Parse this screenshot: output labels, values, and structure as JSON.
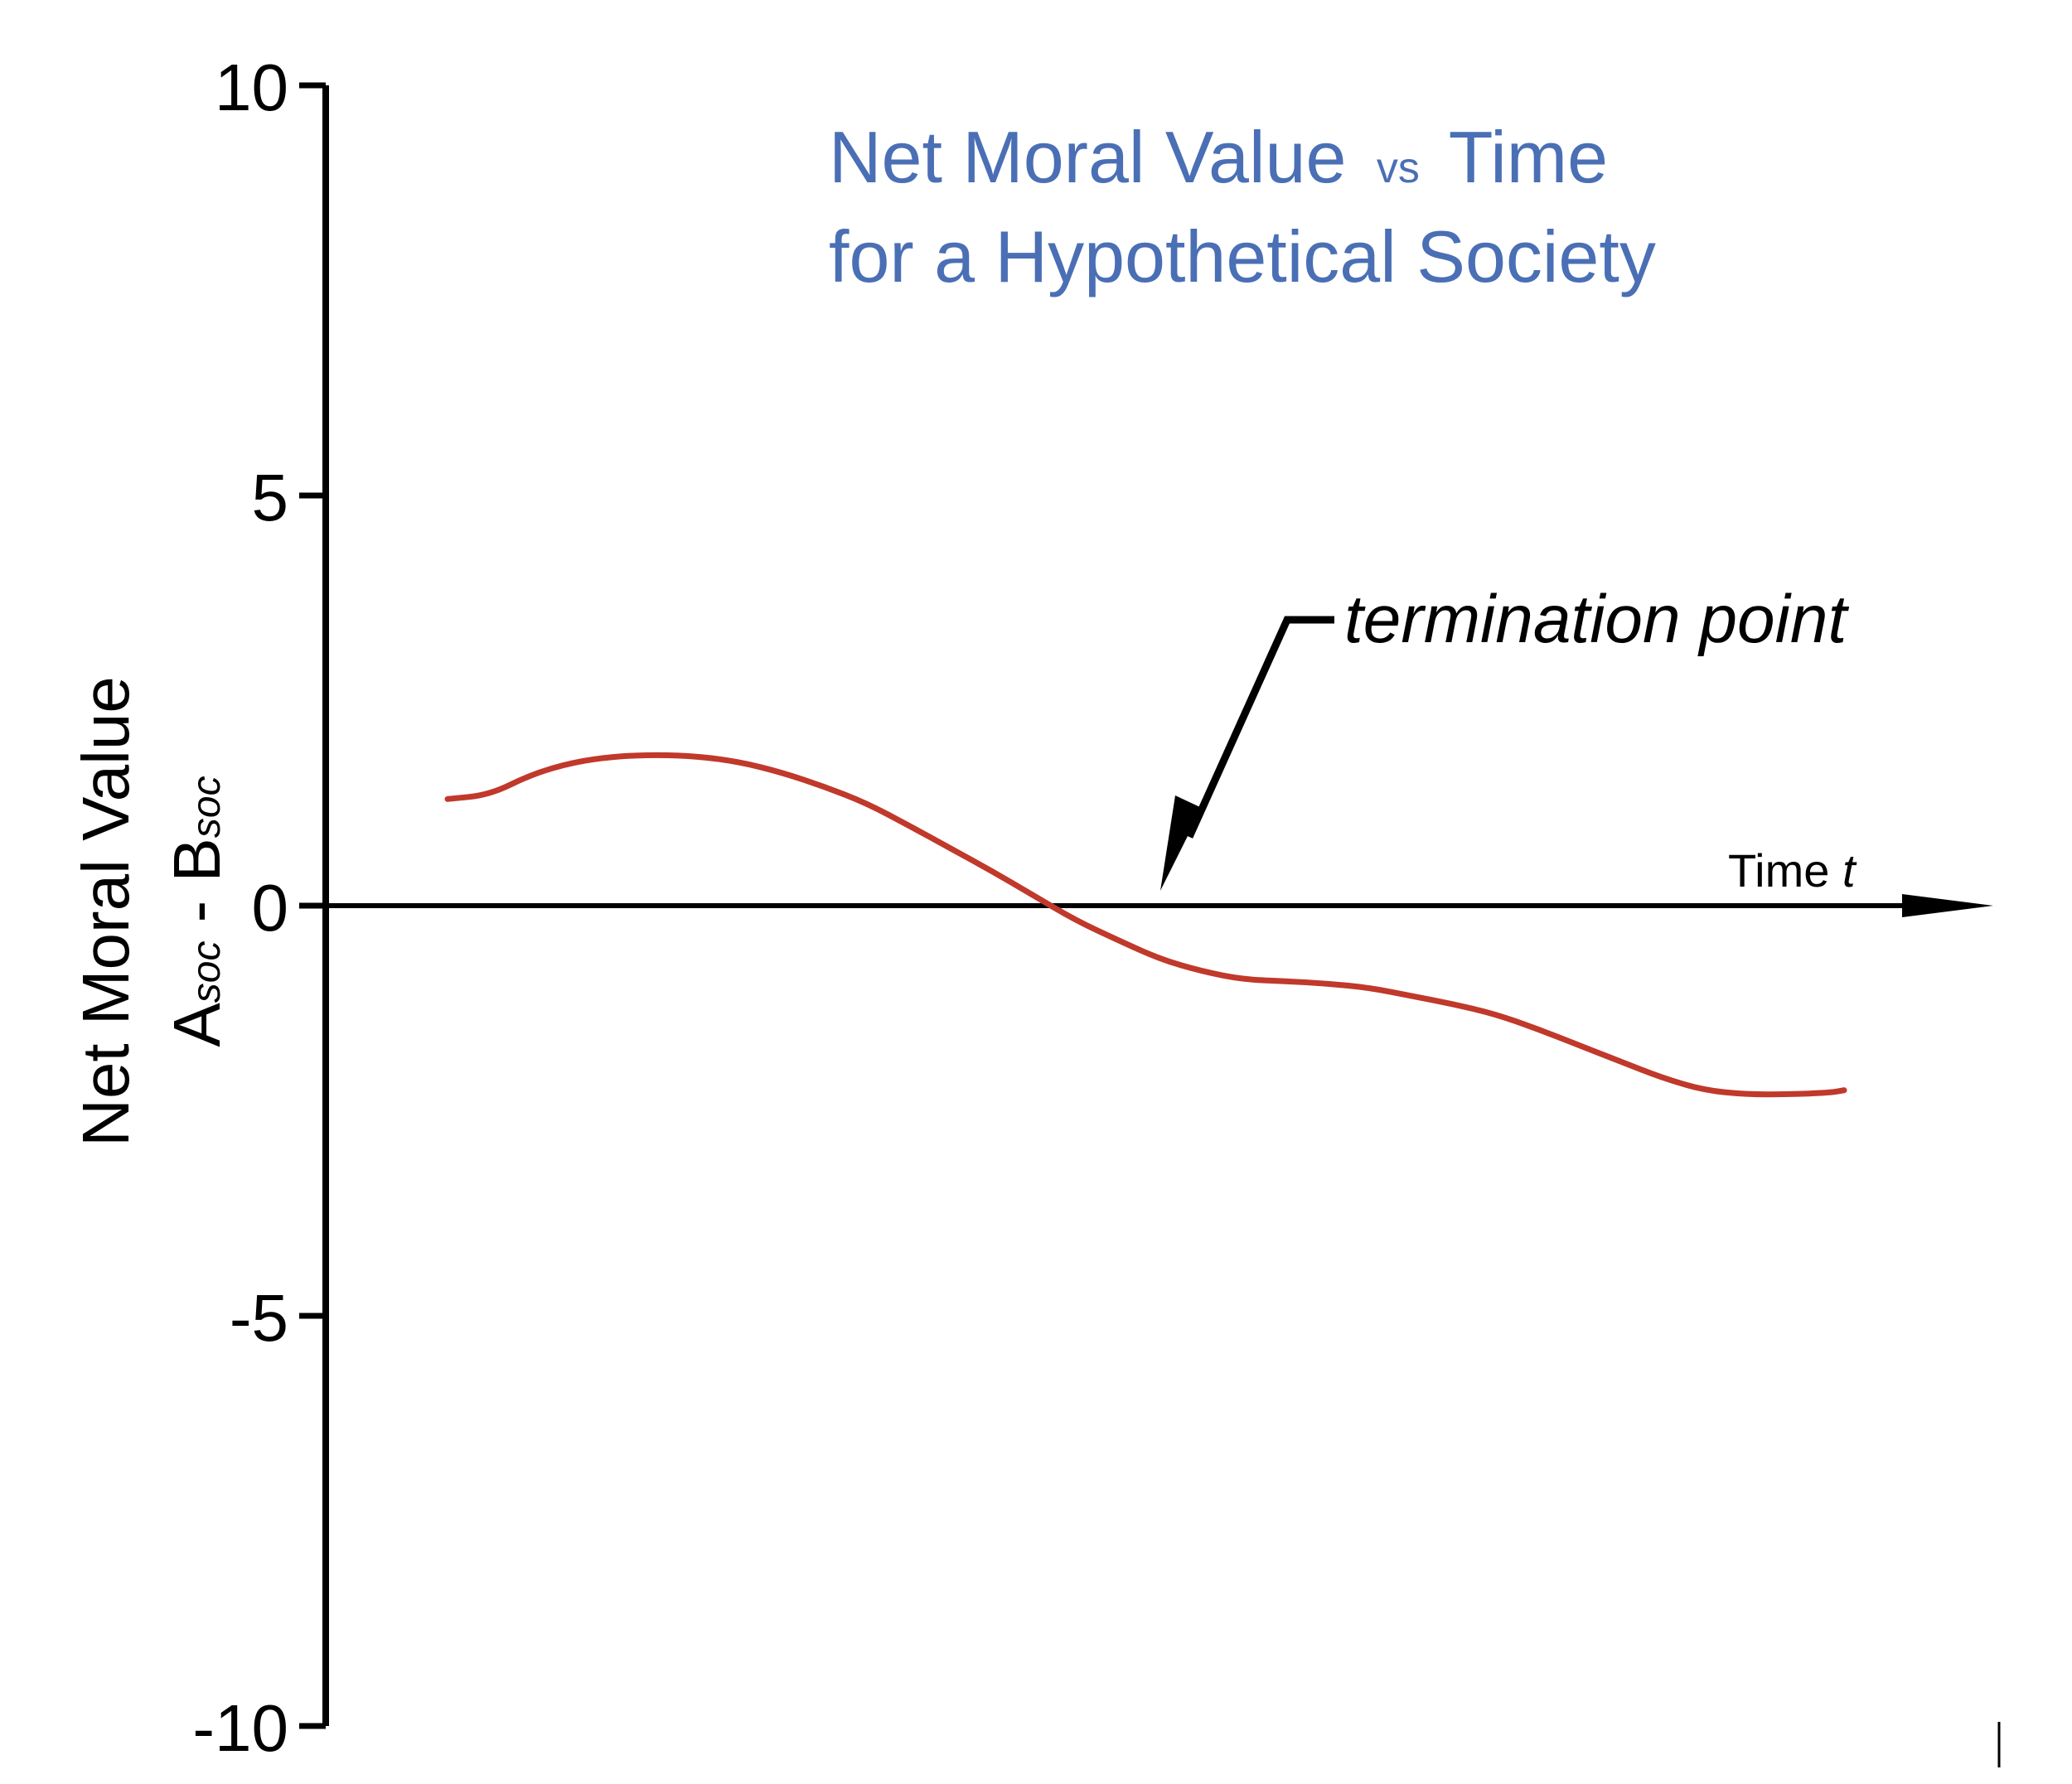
{
  "chart_data": {
    "type": "line",
    "title_parts": {
      "main_before": "Net Moral Value",
      "small": "vs",
      "main_after": "Time",
      "line2": "for a Hypothetical Society"
    },
    "xlabel": "Time",
    "xlabel_var": "t",
    "ylabel": "Net Moral Value",
    "ylabel_expr": {
      "a": "A",
      "a_sub": "soc",
      "sep": " - ",
      "b": "B",
      "b_sub": "soc"
    },
    "ylim": [
      -10,
      10
    ],
    "yticks": [
      10,
      5,
      0,
      -5,
      -10
    ],
    "ytick_labels": [
      "10",
      "5",
      "0",
      "-5",
      "-10"
    ],
    "xlim": [
      0,
      100
    ],
    "grid": false,
    "legend": "none",
    "series": [
      {
        "color": "#c0392b",
        "x": [
          0,
          3,
          6,
          9,
          12,
          15,
          18,
          21,
          24,
          27,
          30,
          33,
          36,
          39,
          42,
          45,
          48,
          51,
          54,
          57,
          60,
          63,
          66,
          69,
          72,
          75,
          78,
          81,
          84,
          87,
          90,
          93,
          96,
          99,
          100
        ],
        "y": [
          1.3,
          1.35,
          1.6,
          1.75,
          1.82,
          1.84,
          1.82,
          1.75,
          1.62,
          1.45,
          1.25,
          0.98,
          0.7,
          0.42,
          0.12,
          -0.18,
          -0.42,
          -0.65,
          -0.8,
          -0.9,
          -0.92,
          -0.95,
          -1.0,
          -1.1,
          -1.2,
          -1.32,
          -1.5,
          -1.7,
          -1.9,
          -2.1,
          -2.25,
          -2.3,
          -2.3,
          -2.28,
          -2.25
        ]
      }
    ],
    "annotations": [
      {
        "text": "termination point",
        "x": 52,
        "y": 0
      }
    ],
    "axis_color": "#000000",
    "title_color": "#4a6fb5"
  }
}
